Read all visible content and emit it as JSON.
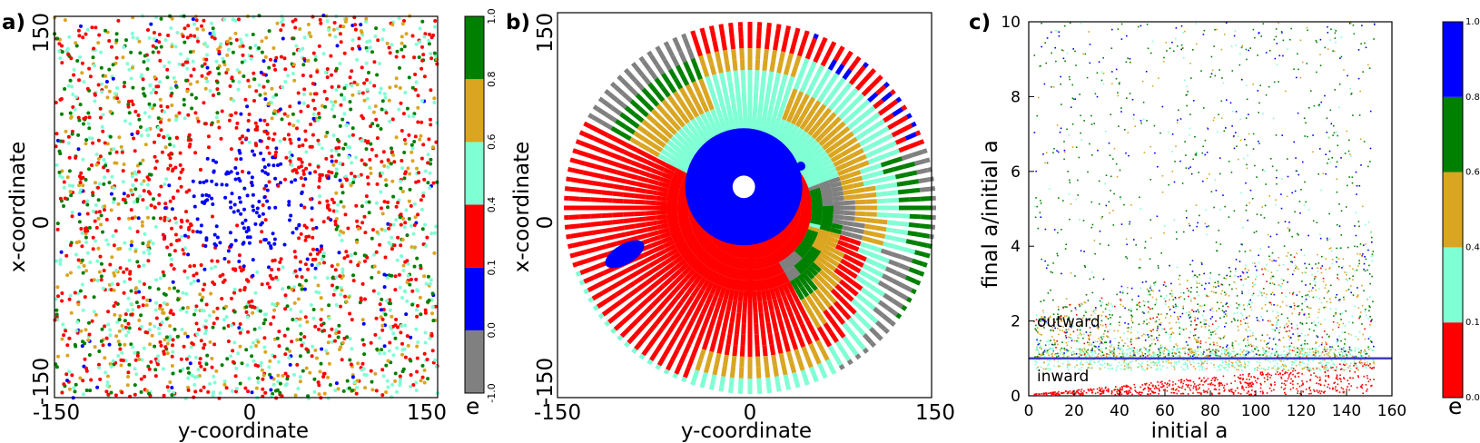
{
  "palette": {
    "gray": "#808080",
    "blue": "#0000ff",
    "red": "#ff0000",
    "aqua": "#7fffd4",
    "gold": "#daa520",
    "green": "#008000"
  },
  "panels": [
    {
      "letter": "a)"
    },
    {
      "letter": "b)"
    },
    {
      "letter": "c)"
    }
  ],
  "chart_data": [
    {
      "type": "scatter",
      "panel": "a)",
      "xlabel": "y-coordinate",
      "ylabel": "x-coordinate",
      "xlim": [
        -150,
        150
      ],
      "ylim": [
        -150,
        150
      ],
      "xticks": [
        "-150",
        "0",
        "150"
      ],
      "yticks": [
        "-150",
        "0",
        "150"
      ],
      "description_values": {
        "inner_blue_core_radius": 45,
        "red_ring_outer_radius": 70,
        "outer_mixed_radius": 150
      },
      "colorbar": {
        "label": "e",
        "ticks": [
          "-1.0",
          "0.0",
          "0.1",
          "0.4",
          "0.6",
          "0.8",
          "1.0"
        ],
        "colors": [
          "gray",
          "blue",
          "red",
          "aqua",
          "gold",
          "green"
        ]
      }
    },
    {
      "type": "scatter",
      "panel": "b)",
      "xlabel": "y-coordinate",
      "ylabel": "x-coordinate",
      "xlim": [
        -150,
        150
      ],
      "ylim": [
        -150,
        150
      ],
      "xticks": [
        "-150",
        "0",
        "150"
      ],
      "yticks": [
        "-150",
        "0",
        "150"
      ],
      "disk_radius": 150,
      "blue_core": {
        "center": [
          -5,
          17
        ],
        "radius": 40
      },
      "hole": {
        "center": [
          -5,
          17
        ],
        "radius": 7
      }
    },
    {
      "type": "scatter",
      "panel": "c)",
      "xlabel": "initial a",
      "ylabel": "final a/initial a",
      "xlim": [
        0,
        160
      ],
      "ylim": [
        0,
        10
      ],
      "xticks": [
        "0",
        "20",
        "40",
        "60",
        "80",
        "100",
        "120",
        "140",
        "160"
      ],
      "yticks": [
        "0",
        "2",
        "4",
        "6",
        "8",
        "10"
      ],
      "reference_line": {
        "y": 1.0,
        "color": "#3f3fbf"
      },
      "annotations": [
        "outward",
        "inward"
      ],
      "colorbar": {
        "label": "e",
        "ticks": [
          "0.0",
          "0.1",
          "0.4",
          "0.6",
          "0.8",
          "1.0"
        ],
        "colors": [
          "red",
          "aqua",
          "gold",
          "green",
          "blue"
        ]
      }
    }
  ]
}
